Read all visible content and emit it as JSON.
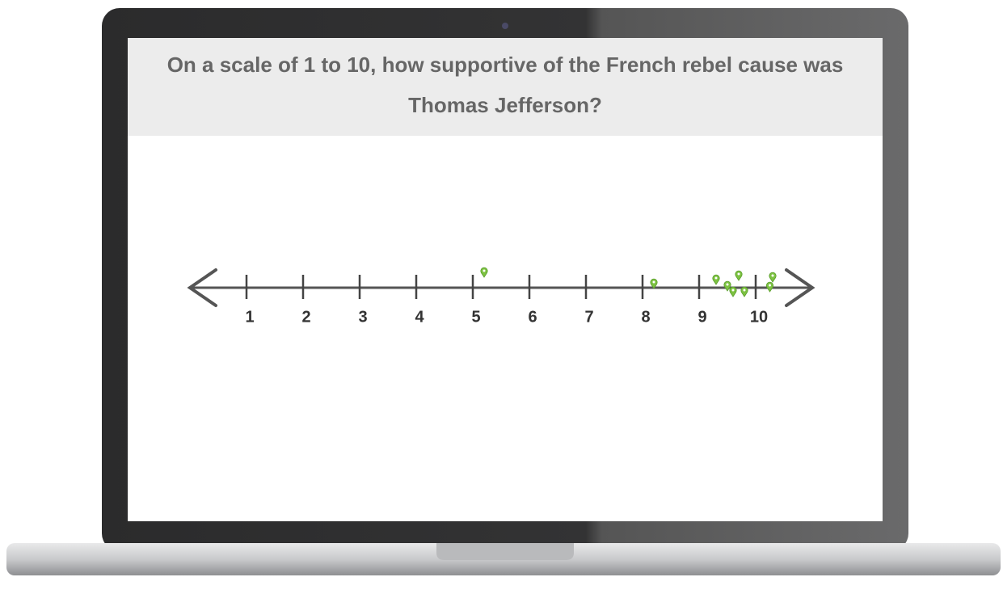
{
  "question": "On a scale of 1 to 10, how supportive of the French rebel cause was Thomas Jefferson?",
  "number_line": {
    "xlim": [
      0,
      11
    ],
    "xticks": [
      1,
      2,
      3,
      4,
      5,
      6,
      7,
      8,
      9,
      10
    ],
    "color": "#7dc242",
    "responses": [
      5.2,
      8.2,
      9.3,
      9.5,
      9.7,
      9.6,
      9.8,
      10.25,
      10.3
    ]
  }
}
